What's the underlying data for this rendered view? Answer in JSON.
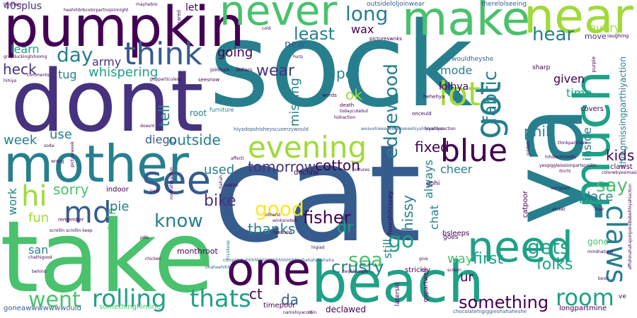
{
  "palette": {
    "dark_purple": "#440154",
    "indigo": "#46327e",
    "blue": "#365c8d",
    "teal": "#277f8e",
    "green_teal": "#1fa187",
    "green": "#4ac16d",
    "lime": "#a0da39",
    "yellow": "#fde725"
  },
  "words": [
    {
      "text": "sock"
    },
    {
      "text": "cat"
    },
    {
      "text": "take"
    },
    {
      "text": "dont"
    },
    {
      "text": "ya"
    },
    {
      "text": "pumpkin"
    },
    {
      "text": "mother"
    },
    {
      "text": "beach"
    },
    {
      "text": "never"
    },
    {
      "text": "make"
    },
    {
      "text": "near"
    },
    {
      "text": "much"
    },
    {
      "text": "need"
    },
    {
      "text": "one"
    },
    {
      "text": "got"
    },
    {
      "text": "claws"
    },
    {
      "text": "see"
    },
    {
      "text": "think"
    },
    {
      "text": "evening"
    },
    {
      "text": "blue"
    },
    {
      "text": "lot"
    },
    {
      "text": "md"
    },
    {
      "text": "hi"
    },
    {
      "text": "rolling"
    },
    {
      "text": "thats"
    },
    {
      "text": "went"
    },
    {
      "text": "room"
    },
    {
      "text": "go"
    },
    {
      "text": "sea"
    },
    {
      "text": "gets"
    },
    {
      "text": "day"
    },
    {
      "text": "know"
    },
    {
      "text": "good"
    },
    {
      "text": "fabric"
    },
    {
      "text": "edgewood"
    },
    {
      "text": "long"
    },
    {
      "text": "least"
    },
    {
      "text": "hear"
    },
    {
      "text": "say"
    },
    {
      "text": "something"
    },
    {
      "text": "folks"
    },
    {
      "text": "first"
    },
    {
      "text": "crusty"
    },
    {
      "text": "fisher"
    },
    {
      "text": "cotton"
    },
    {
      "text": "tomorrow"
    },
    {
      "text": "thanks"
    },
    {
      "text": "wear"
    },
    {
      "text": "whispering"
    },
    {
      "text": "outside"
    },
    {
      "text": "heck"
    },
    {
      "text": "bike"
    },
    {
      "text": "sorry"
    },
    {
      "text": "fixed"
    },
    {
      "text": "hissy"
    },
    {
      "text": "dr"
    },
    {
      "text": "missing"
    },
    {
      "text": "pet"
    },
    {
      "text": "ok"
    },
    {
      "text": "tell"
    },
    {
      "text": "phil"
    },
    {
      "text": "kids"
    },
    {
      "text": "place"
    },
    {
      "text": "way"
    },
    {
      "text": "ur"
    },
    {
      "text": "da"
    },
    {
      "text": "ct"
    },
    {
      "text": "week"
    },
    {
      "text": "use"
    },
    {
      "text": "diego"
    },
    {
      "text": "going"
    },
    {
      "text": "used"
    },
    {
      "text": "mountain"
    },
    {
      "text": "pie"
    },
    {
      "text": "fun"
    },
    {
      "text": "work"
    },
    {
      "text": "san"
    },
    {
      "text": "learn"
    },
    {
      "text": "army"
    },
    {
      "text": "tug"
    },
    {
      "text": "mode"
    },
    {
      "text": "given"
    },
    {
      "text": "time"
    },
    {
      "text": "always"
    },
    {
      "text": "chat"
    },
    {
      "text": "still"
    },
    {
      "text": "inside"
    },
    {
      "text": "every"
    },
    {
      "text": "cheer"
    },
    {
      "text": "lolhya"
    },
    {
      "text": "wax"
    },
    {
      "text": "new"
    },
    {
      "text": "40splus"
    },
    {
      "text": "let"
    },
    {
      "text": "root"
    },
    {
      "text": "declawed"
    },
    {
      "text": "gone"
    },
    {
      "text": "move"
    },
    {
      "text": "thingmissingparthiyaction"
    },
    {
      "text": "outsideloljoinwear"
    },
    {
      "text": "therelolseeing"
    },
    {
      "text": "wouldheyshe"
    },
    {
      "text": "monthroot"
    },
    {
      "text": "indoor"
    },
    {
      "text": "bsleeps"
    },
    {
      "text": "strickly"
    },
    {
      "text": "timepoor"
    },
    {
      "text": "declaw"
    },
    {
      "text": "somethinghimine"
    },
    {
      "text": "goneawwwwwwwould"
    },
    {
      "text": "longpartmine"
    },
    {
      "text": "chocolatehigiggieshahaheshe"
    },
    {
      "text": "laterskl"
    },
    {
      "text": "gopartwell"
    },
    {
      "text": "foxeshihisswy"
    },
    {
      "text": "gohi"
    },
    {
      "text": "catpoor"
    },
    {
      "text": "covers"
    },
    {
      "text": "clawst"
    },
    {
      "text": "sharp"
    },
    {
      "text": "purple"
    },
    {
      "text": "laughing"
    },
    {
      "text": "pictureswnks"
    },
    {
      "text": "hehehya"
    },
    {
      "text": "furniture"
    },
    {
      "text": "joinhuin"
    },
    {
      "text": "seesnow"
    },
    {
      "text": "dollars"
    },
    {
      "text": "death"
    },
    {
      "text": "words"
    },
    {
      "text": "todaycutebut"
    },
    {
      "text": "onceuld"
    },
    {
      "text": "hiyadopshisheyscuserzywould"
    },
    {
      "text": "weavehieeeeeeeeeeeeehiyahiyaaction"
    },
    {
      "text": "complexhahhhhhhhhhhhhhhhhhhhloihahahahahaha"
    },
    {
      "text": "ohaheehihihi"
    },
    {
      "text": "higiad"
    },
    {
      "text": "otherst"
    },
    {
      "text": "winksnoted"
    },
    {
      "text": "hiwould"
    },
    {
      "text": "goes"
    },
    {
      "text": "heyhipeople"
    },
    {
      "text": "screen"
    },
    {
      "text": "give"
    },
    {
      "text": "hiyakeep"
    },
    {
      "text": "scrollin scrollin keep"
    },
    {
      "text": "remember"
    },
    {
      "text": "chathigood"
    },
    {
      "text": "chicken"
    },
    {
      "text": "behind"
    },
    {
      "text": "pills"
    },
    {
      "text": "pain"
    },
    {
      "text": "realize"
    },
    {
      "text": "hahah"
    },
    {
      "text": "wrong"
    },
    {
      "text": "soda"
    },
    {
      "text": "namshiyacold"
    },
    {
      "text": "pictures"
    },
    {
      "text": "min"
    },
    {
      "text": "sorrypart"
    },
    {
      "text": "etcket"
    },
    {
      "text": "hair"
    },
    {
      "text": "boot"
    },
    {
      "text": "hihibackhiokhi"
    },
    {
      "text": "yesgiggleissioinpartscrollin"
    },
    {
      "text": "itnchi"
    },
    {
      "text": "colorwbyesimasio"
    },
    {
      "text": "thinkpartneck"
    },
    {
      "text": "mindnatural"
    },
    {
      "text": "affishmahahajoinjoinebebehhiyahiaction"
    },
    {
      "text": "ve"
    },
    {
      "text": "brothers"
    },
    {
      "text": "heehihbrbcolorpartnojoinnight"
    },
    {
      "text": "mayhebro"
    },
    {
      "text": "scared"
    },
    {
      "text": "cold"
    },
    {
      "text": "grayduckinghihiomg"
    },
    {
      "text": "popparticuless"
    },
    {
      "text": "hihiya"
    },
    {
      "text": "comments"
    },
    {
      "text": "hurp"
    },
    {
      "text": "doesnt"
    },
    {
      "text": "hiyahiyaaction"
    },
    {
      "text": "affecti"
    },
    {
      "text": "hidraction"
    },
    {
      "text": "nodhahinaction"
    },
    {
      "text": "golden"
    },
    {
      "text": "pictureweek"
    }
  ]
}
